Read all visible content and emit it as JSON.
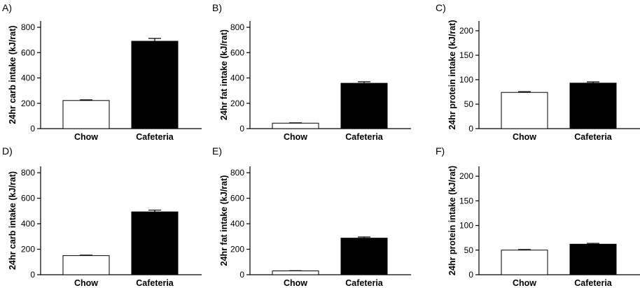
{
  "chart_data": [
    {
      "panel": "A)",
      "type": "bar",
      "categories": [
        "Chow",
        "Cafeteria"
      ],
      "values": [
        222,
        690
      ],
      "errors": [
        5,
        22
      ],
      "ylabel": "24hr carb intake (kJ/rat)",
      "ylim": [
        0,
        850
      ],
      "yticks": [
        0,
        200,
        400,
        600,
        800
      ],
      "bar_colors": [
        "#ffffff",
        "#000000"
      ]
    },
    {
      "panel": "B)",
      "type": "bar",
      "categories": [
        "Chow",
        "Cafeteria"
      ],
      "values": [
        43,
        358
      ],
      "errors": [
        3,
        12
      ],
      "ylabel": "24hr fat intake (kJ/rat)",
      "ylim": [
        0,
        850
      ],
      "yticks": [
        0,
        200,
        400,
        600,
        800
      ],
      "bar_colors": [
        "#ffffff",
        "#000000"
      ]
    },
    {
      "panel": "C)",
      "type": "bar",
      "categories": [
        "Chow",
        "Cafeteria"
      ],
      "values": [
        74,
        93
      ],
      "errors": [
        1.5,
        2.5
      ],
      "ylabel": "24hr protein intake (kJ/rat)",
      "ylim": [
        0,
        220
      ],
      "yticks": [
        0,
        50,
        100,
        150,
        200
      ],
      "bar_colors": [
        "#ffffff",
        "#000000"
      ]
    },
    {
      "panel": "D)",
      "type": "bar",
      "categories": [
        "Chow",
        "Cafeteria"
      ],
      "values": [
        150,
        493
      ],
      "errors": [
        4,
        14
      ],
      "ylabel": "24hr carb intake (kJ/rat)",
      "ylim": [
        0,
        850
      ],
      "yticks": [
        0,
        200,
        400,
        600,
        800
      ],
      "bar_colors": [
        "#ffffff",
        "#000000"
      ]
    },
    {
      "panel": "E)",
      "type": "bar",
      "categories": [
        "Chow",
        "Cafeteria"
      ],
      "values": [
        30,
        287
      ],
      "errors": [
        2,
        9
      ],
      "ylabel": "24hr fat intake (kJ/rat)",
      "ylim": [
        0,
        850
      ],
      "yticks": [
        0,
        200,
        400,
        600,
        800
      ],
      "bar_colors": [
        "#ffffff",
        "#000000"
      ]
    },
    {
      "panel": "F)",
      "type": "bar",
      "categories": [
        "Chow",
        "Cafeteria"
      ],
      "values": [
        50,
        62
      ],
      "errors": [
        1.2,
        1.8
      ],
      "ylabel": "24hr protein intake (kJ/rat)",
      "ylim": [
        0,
        220
      ],
      "yticks": [
        0,
        50,
        100,
        150,
        200
      ],
      "bar_colors": [
        "#ffffff",
        "#000000"
      ]
    }
  ]
}
